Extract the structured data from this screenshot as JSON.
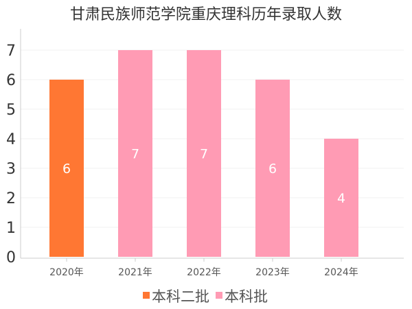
{
  "chart_data": {
    "type": "bar",
    "title": "甘肃民族师范学院重庆理科历年录取人数",
    "categories": [
      "2020年",
      "2021年",
      "2022年",
      "2023年",
      "2024年"
    ],
    "values": [
      6,
      7,
      7,
      6,
      4
    ],
    "series_of_bar": [
      "本科二批",
      "本科批",
      "本科批",
      "本科批",
      "本科批"
    ],
    "series": [
      {
        "name": "本科二批",
        "color": "#FF7733"
      },
      {
        "name": "本科批",
        "color": "#FF9BB4"
      }
    ],
    "ylim": [
      0,
      7
    ],
    "yticks": [
      0,
      1,
      2,
      3,
      4,
      5,
      6,
      7
    ],
    "grid": true,
    "legend": "bottom",
    "data_labels": true
  }
}
